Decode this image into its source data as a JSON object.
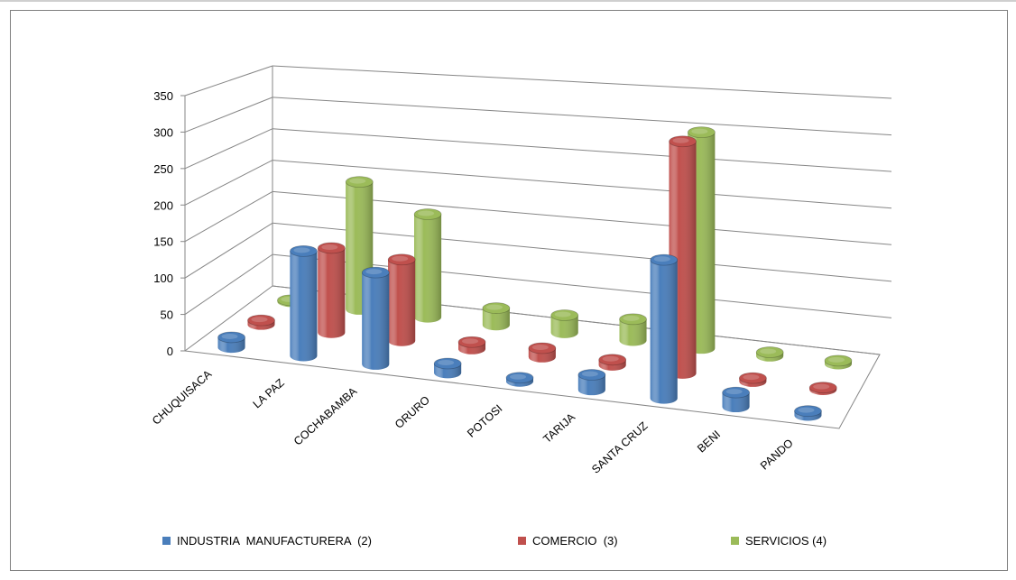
{
  "chart_data": {
    "type": "bar",
    "title": "",
    "xlabel": "",
    "ylabel": "",
    "ylim": [
      0,
      350
    ],
    "yticks": [
      0,
      50,
      100,
      150,
      200,
      250,
      300,
      350
    ],
    "categories": [
      "CHUQUISACA",
      "LA PAZ",
      "COCHABAMBA",
      "ORURO",
      "POTOSI",
      "TARIJA",
      "SANTA CRUZ",
      "BENI",
      "PANDO"
    ],
    "series": [
      {
        "name": "INDUSTRIA  MANUFACTURERA  (2)",
        "color": "#4a7ebb",
        "values": [
          14,
          146,
          128,
          13,
          5,
          21,
          193,
          20,
          6
        ]
      },
      {
        "name": "COMERCIO  (3)",
        "color": "#c0504d",
        "values": [
          6,
          124,
          119,
          10,
          13,
          8,
          340,
          5,
          3
        ]
      },
      {
        "name": "SERVICIOS (4)",
        "color": "#9bbb59",
        "values": [
          2,
          197,
          159,
          26,
          27,
          33,
          334,
          6,
          5
        ]
      }
    ],
    "grid": true,
    "legend_position": "bottom",
    "chart_style": "3d-cylinder"
  }
}
